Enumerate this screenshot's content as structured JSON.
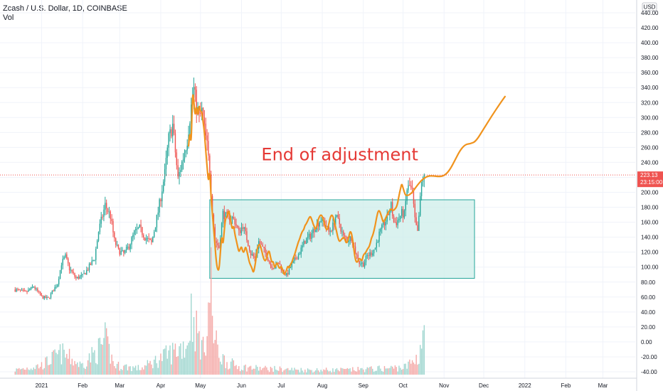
{
  "legend": {
    "symbol_line": "Zcash / U.S. Dollar, 1D, COINBASE",
    "volume_label": "Vol"
  },
  "colors": {
    "up": "#26a69a",
    "down": "#ef5350",
    "volume_up": "#9fd6cf",
    "volume_down": "#f4a9a7",
    "annotation": "#e53935",
    "projection": "#f0931d",
    "box_fill": "#cdeee9",
    "box_stroke": "#26a69a",
    "grid": "#f0f3fa",
    "price_line": "#ef5350"
  },
  "chart_data": {
    "type": "candlestick",
    "title": "Zcash / U.S. Dollar, 1D, COINBASE",
    "currency_label": "USD",
    "y_axis": {
      "min": -40,
      "max": 440,
      "ticks": [
        -40,
        -20,
        0,
        20,
        40,
        60,
        80,
        100,
        120,
        140,
        160,
        180,
        200,
        220,
        240,
        260,
        280,
        300,
        320,
        340,
        360,
        380,
        400,
        420,
        440
      ],
      "tick_labels": [
        "-40.00",
        "-20.00",
        "0.00",
        "20.00",
        "40.00",
        "60.00",
        "80.00",
        "100.00",
        "120.00",
        "140.00",
        "160.00",
        "180.00",
        "200.00",
        "220.00",
        "240.00",
        "260.00",
        "280.00",
        "300.00",
        "320.00",
        "340.00",
        "360.00",
        "380.00",
        "400.00",
        "420.00",
        "440.00"
      ]
    },
    "x_axis": {
      "labels": [
        "2021",
        "Feb",
        "Mar",
        "Apr",
        "May",
        "Jun",
        "Jul",
        "Aug",
        "Sep",
        "Oct",
        "Nov",
        "Dec",
        "2022",
        "Feb",
        "Mar"
      ],
      "label_days": [
        0,
        31,
        59,
        90,
        120,
        151,
        181,
        212,
        243,
        273,
        304,
        334,
        365,
        396,
        424
      ]
    },
    "current_price": {
      "value": 223.13,
      "label": "223.13",
      "countdown": "23:15:00"
    },
    "price_keypoints": [
      [
        -20,
        70
      ],
      [
        -12,
        66
      ],
      [
        -6,
        74
      ],
      [
        0,
        60
      ],
      [
        5,
        58
      ],
      [
        12,
        78
      ],
      [
        15,
        105
      ],
      [
        18,
        114
      ],
      [
        21,
        98
      ],
      [
        26,
        85
      ],
      [
        31,
        88
      ],
      [
        35,
        98
      ],
      [
        40,
        112
      ],
      [
        43,
        148
      ],
      [
        48,
        183
      ],
      [
        52,
        168
      ],
      [
        55,
        135
      ],
      [
        58,
        122
      ],
      [
        62,
        118
      ],
      [
        66,
        128
      ],
      [
        70,
        146
      ],
      [
        74,
        152
      ],
      [
        78,
        140
      ],
      [
        83,
        132
      ],
      [
        88,
        174
      ],
      [
        93,
        225
      ],
      [
        96,
        272
      ],
      [
        99,
        290
      ],
      [
        103,
        218
      ],
      [
        106,
        240
      ],
      [
        110,
        270
      ],
      [
        113,
        315
      ],
      [
        115,
        338
      ],
      [
        117,
        315
      ],
      [
        119,
        300
      ],
      [
        121,
        308
      ],
      [
        123,
        285
      ],
      [
        125,
        262
      ],
      [
        127,
        228
      ],
      [
        129,
        175
      ],
      [
        131,
        136
      ],
      [
        134,
        126
      ],
      [
        137,
        172
      ],
      [
        140,
        166
      ],
      [
        143,
        168
      ],
      [
        146,
        161
      ],
      [
        149,
        146
      ],
      [
        152,
        156
      ],
      [
        155,
        138
      ],
      [
        158,
        118
      ],
      [
        161,
        112
      ],
      [
        164,
        134
      ],
      [
        167,
        125
      ],
      [
        170,
        115
      ],
      [
        173,
        103
      ],
      [
        176,
        100
      ],
      [
        179,
        106
      ],
      [
        182,
        95
      ],
      [
        185,
        89
      ],
      [
        188,
        100
      ],
      [
        191,
        109
      ],
      [
        195,
        120
      ],
      [
        199,
        135
      ],
      [
        203,
        142
      ],
      [
        207,
        155
      ],
      [
        211,
        164
      ],
      [
        214,
        158
      ],
      [
        217,
        147
      ],
      [
        220,
        155
      ],
      [
        222,
        168
      ],
      [
        225,
        158
      ],
      [
        228,
        140
      ],
      [
        231,
        136
      ],
      [
        234,
        140
      ],
      [
        237,
        120
      ],
      [
        240,
        106
      ],
      [
        243,
        104
      ],
      [
        246,
        115
      ],
      [
        249,
        119
      ],
      [
        252,
        126
      ],
      [
        255,
        144
      ],
      [
        258,
        155
      ],
      [
        261,
        166
      ],
      [
        264,
        182
      ],
      [
        266,
        160
      ],
      [
        268,
        160
      ],
      [
        270,
        165
      ],
      [
        272,
        172
      ],
      [
        274,
        170
      ],
      [
        276,
        204
      ],
      [
        278,
        208
      ],
      [
        280,
        200
      ],
      [
        282,
        162
      ],
      [
        284,
        145
      ],
      [
        285,
        168
      ],
      [
        287,
        212
      ],
      [
        289,
        228
      ]
    ],
    "volume_keypoints": [
      [
        -20,
        3
      ],
      [
        0,
        6
      ],
      [
        15,
        14
      ],
      [
        30,
        6
      ],
      [
        43,
        16
      ],
      [
        48,
        22
      ],
      [
        55,
        6
      ],
      [
        75,
        4
      ],
      [
        93,
        12
      ],
      [
        110,
        20
      ],
      [
        113,
        40
      ],
      [
        118,
        26
      ],
      [
        122,
        16
      ],
      [
        125,
        32
      ],
      [
        128,
        60
      ],
      [
        130,
        24
      ],
      [
        135,
        12
      ],
      [
        140,
        8
      ],
      [
        150,
        5
      ],
      [
        165,
        4
      ],
      [
        200,
        3
      ],
      [
        230,
        3
      ],
      [
        260,
        4
      ],
      [
        275,
        5
      ],
      [
        285,
        12
      ],
      [
        289,
        34
      ]
    ],
    "consolidation_box": {
      "x_start": 127,
      "x_end": 327,
      "y_low": 85,
      "y_high": 190
    },
    "projection": {
      "path": [
        [
          111,
          262
        ],
        [
          112,
          282
        ],
        [
          113,
          262
        ],
        [
          114,
          336
        ],
        [
          115,
          322
        ],
        [
          116,
          300
        ],
        [
          117,
          318
        ],
        [
          118,
          300
        ],
        [
          119,
          318
        ],
        [
          120,
          308
        ],
        [
          121,
          308
        ],
        [
          122,
          294
        ],
        [
          123,
          280
        ],
        [
          124,
          255
        ],
        [
          125,
          234
        ],
        [
          126,
          212
        ],
        [
          127,
          232
        ],
        [
          128,
          192
        ],
        [
          129,
          172
        ],
        [
          130,
          150
        ],
        [
          131,
          128
        ],
        [
          132,
          106
        ],
        [
          133,
          96
        ],
        [
          134,
          96
        ],
        [
          135,
          118
        ],
        [
          136,
          144
        ],
        [
          137,
          128
        ],
        [
          138,
          150
        ],
        [
          139,
          166
        ],
        [
          140,
          166
        ],
        [
          141,
          176
        ],
        [
          142,
          172
        ],
        [
          143,
          160
        ],
        [
          144,
          150
        ],
        [
          145,
          156
        ],
        [
          146,
          144
        ],
        [
          147,
          136
        ],
        [
          148,
          128
        ],
        [
          149,
          120
        ],
        [
          150,
          124
        ],
        [
          151,
          128
        ],
        [
          152,
          120
        ],
        [
          153,
          120
        ],
        [
          154,
          128
        ],
        [
          155,
          122
        ],
        [
          156,
          114
        ],
        [
          157,
          106
        ],
        [
          158,
          102
        ],
        [
          159,
          98
        ],
        [
          160,
          92
        ],
        [
          161,
          100
        ],
        [
          162,
          112
        ],
        [
          163,
          126
        ],
        [
          164,
          130
        ],
        [
          165,
          130
        ],
        [
          166,
          124
        ],
        [
          167,
          116
        ],
        [
          168,
          110
        ],
        [
          169,
          108
        ],
        [
          170,
          112
        ],
        [
          171,
          120
        ],
        [
          172,
          122
        ],
        [
          173,
          112
        ],
        [
          174,
          106
        ],
        [
          175,
          108
        ],
        [
          176,
          98
        ],
        [
          177,
          104
        ],
        [
          178,
          106
        ],
        [
          179,
          100
        ],
        [
          180,
          98
        ],
        [
          181,
          102
        ],
        [
          182,
          96
        ],
        [
          183,
          90
        ],
        [
          184,
          92
        ],
        [
          185,
          96
        ],
        [
          186,
          102
        ],
        [
          187,
          98
        ],
        [
          188,
          104
        ],
        [
          189,
          106
        ],
        [
          190,
          112
        ],
        [
          191,
          116
        ],
        [
          192,
          122
        ],
        [
          193,
          128
        ],
        [
          194,
          134
        ],
        [
          195,
          138
        ],
        [
          196,
          144
        ],
        [
          197,
          148
        ],
        [
          198,
          150
        ],
        [
          199,
          156
        ],
        [
          200,
          158
        ],
        [
          201,
          162
        ],
        [
          202,
          166
        ],
        [
          203,
          168
        ],
        [
          204,
          164
        ],
        [
          205,
          158
        ],
        [
          206,
          154
        ],
        [
          207,
          150
        ],
        [
          208,
          156
        ],
        [
          209,
          164
        ],
        [
          210,
          168
        ],
        [
          211,
          170
        ],
        [
          212,
          168
        ],
        [
          213,
          162
        ],
        [
          214,
          156
        ],
        [
          215,
          150
        ],
        [
          216,
          150
        ],
        [
          217,
          158
        ],
        [
          218,
          166
        ],
        [
          219,
          170
        ],
        [
          220,
          168
        ],
        [
          221,
          162
        ],
        [
          222,
          154
        ],
        [
          223,
          146
        ],
        [
          224,
          138
        ],
        [
          225,
          134
        ],
        [
          226,
          136
        ],
        [
          227,
          138
        ],
        [
          228,
          140
        ],
        [
          229,
          138
        ],
        [
          230,
          132
        ],
        [
          231,
          134
        ],
        [
          232,
          140
        ],
        [
          233,
          148
        ],
        [
          234,
          146
        ],
        [
          235,
          136
        ],
        [
          236,
          122
        ],
        [
          237,
          110
        ],
        [
          238,
          106
        ],
        [
          239,
          108
        ],
        [
          240,
          112
        ],
        [
          241,
          110
        ],
        [
          242,
          108
        ],
        [
          243,
          116
        ],
        [
          244,
          118
        ],
        [
          245,
          120
        ],
        [
          246,
          124
        ],
        [
          247,
          126
        ],
        [
          248,
          130
        ],
        [
          249,
          138
        ],
        [
          250,
          142
        ],
        [
          251,
          148
        ],
        [
          252,
          156
        ],
        [
          253,
          166
        ],
        [
          254,
          174
        ],
        [
          255,
          176
        ],
        [
          256,
          172
        ],
        [
          257,
          166
        ],
        [
          258,
          160
        ],
        [
          259,
          162
        ],
        [
          260,
          166
        ],
        [
          261,
          170
        ],
        [
          262,
          174
        ],
        [
          263,
          176
        ],
        [
          264,
          178
        ],
        [
          265,
          176
        ],
        [
          266,
          176
        ],
        [
          267,
          178
        ],
        [
          268,
          180
        ],
        [
          269,
          186
        ],
        [
          270,
          196
        ],
        [
          271,
          204
        ],
        [
          272,
          212
        ],
        [
          273,
          206
        ],
        [
          274,
          200
        ],
        [
          275,
          196
        ],
        [
          276,
          196
        ],
        [
          277,
          196
        ],
        [
          278,
          197
        ],
        [
          280,
          200
        ],
        [
          284,
          210
        ],
        [
          288,
          218
        ],
        [
          292,
          222
        ],
        [
          296,
          222
        ],
        [
          300,
          221
        ],
        [
          304,
          222
        ],
        [
          308,
          229
        ],
        [
          312,
          242
        ],
        [
          316,
          256
        ],
        [
          320,
          264
        ],
        [
          324,
          265
        ],
        [
          328,
          268
        ],
        [
          334,
          285
        ],
        [
          340,
          302
        ],
        [
          346,
          318
        ],
        [
          350,
          328
        ]
      ]
    },
    "annotations": [
      {
        "text": "End of adjustment",
        "x": 166,
        "y": 243
      }
    ],
    "grid": true,
    "legend_position": "top-left"
  }
}
